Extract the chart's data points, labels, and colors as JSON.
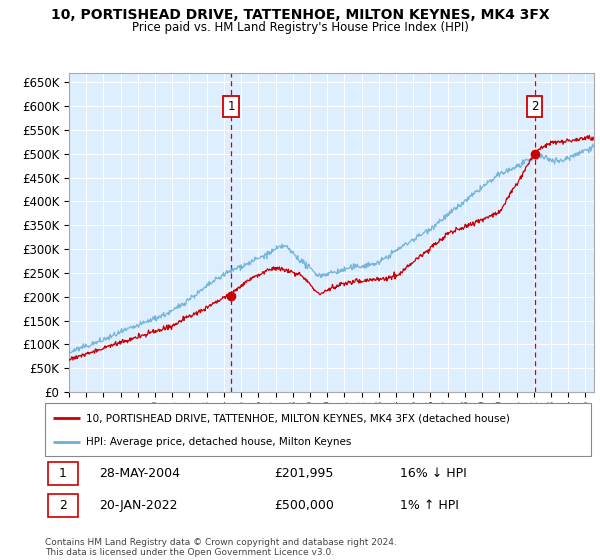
{
  "title": "10, PORTISHEAD DRIVE, TATTENHOE, MILTON KEYNES, MK4 3FX",
  "subtitle": "Price paid vs. HM Land Registry's House Price Index (HPI)",
  "ylim": [
    0,
    670000
  ],
  "yticks": [
    0,
    50000,
    100000,
    150000,
    200000,
    250000,
    300000,
    350000,
    400000,
    450000,
    500000,
    550000,
    600000,
    650000
  ],
  "ytick_labels": [
    "£0",
    "£50K",
    "£100K",
    "£150K",
    "£200K",
    "£250K",
    "£300K",
    "£350K",
    "£400K",
    "£450K",
    "£500K",
    "£550K",
    "£600K",
    "£650K"
  ],
  "sale1_date": 2004.41,
  "sale1_price": 201995,
  "sale1_label": "28-MAY-2004",
  "sale1_pct": "16% ↓ HPI",
  "sale2_date": 2022.05,
  "sale2_price": 500000,
  "sale2_label": "20-JAN-2022",
  "sale2_pct": "1% ↑ HPI",
  "hpi_color": "#6baed6",
  "sale_color": "#cc0000",
  "bg_color": "#ddeeff",
  "grid_color": "#ffffff",
  "legend_sale": "10, PORTISHEAD DRIVE, TATTENHOE, MILTON KEYNES, MK4 3FX (detached house)",
  "legend_hpi": "HPI: Average price, detached house, Milton Keynes",
  "footnote": "Contains HM Land Registry data © Crown copyright and database right 2024.\nThis data is licensed under the Open Government Licence v3.0.",
  "xmin": 1995.0,
  "xmax": 2025.5
}
